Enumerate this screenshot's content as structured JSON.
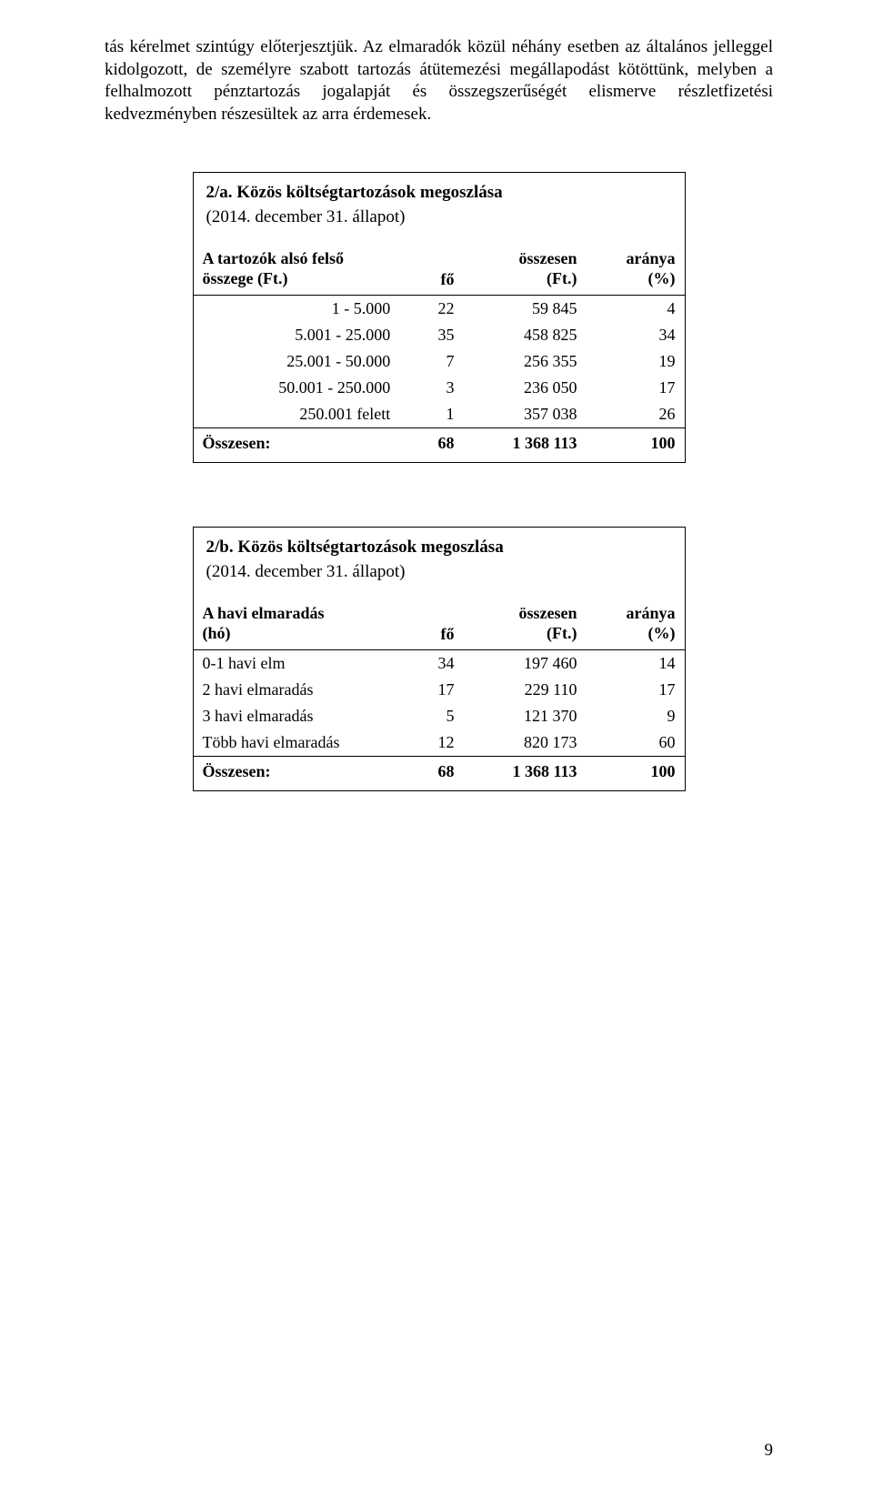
{
  "paragraph": "tás kérelmet szintúgy előterjesztjük. Az elmaradók közül néhány esetben az általános jelleggel kidolgozott, de személyre szabott tartozás átütemezési megállapodást kötöttünk, melyben a felhalmozott pénztartozás jogalapját és összegszerűségét elismerve részletfizetési kedvezményben részesültek az arra érdemesek.",
  "table1": {
    "title": "2/a. Közös költségtartozások megoszlása",
    "subtitle": "(2014. december 31. állapot)",
    "headers": {
      "c1_line1": "A tartozók alsó felső",
      "c1_line2": "összege (Ft.)",
      "c2": "fő",
      "c3_line1": "összesen",
      "c3_line2": "(Ft.)",
      "c4_line1": "aránya",
      "c4_line2": "(%)"
    },
    "rows": [
      {
        "c1": "1 - 5.000",
        "c2": "22",
        "c3": "59 845",
        "c4": "4"
      },
      {
        "c1": "5.001 - 25.000",
        "c2": "35",
        "c3": "458 825",
        "c4": "34"
      },
      {
        "c1": "25.001 - 50.000",
        "c2": "7",
        "c3": "256 355",
        "c4": "19"
      },
      {
        "c1": "50.001 - 250.000",
        "c2": "3",
        "c3": "236 050",
        "c4": "17"
      },
      {
        "c1": "250.001 felett",
        "c2": "1",
        "c3": "357 038",
        "c4": "26"
      }
    ],
    "total": {
      "c1": "Összesen:",
      "c2": "68",
      "c3": "1 368 113",
      "c4": "100"
    }
  },
  "table2": {
    "title": "2/b. Közös költségtartozások megoszlása",
    "subtitle": "(2014. december 31. állapot)",
    "headers": {
      "c1_line1": "A havi  elmaradás",
      "c1_line2": "(hó)",
      "c2": "fő",
      "c3_line1": "összesen",
      "c3_line2": "(Ft.)",
      "c4_line1": "aránya",
      "c4_line2": "(%)"
    },
    "rows": [
      {
        "c1": "0-1 havi elm",
        "c2": "34",
        "c3": "197 460",
        "c4": "14"
      },
      {
        "c1": "2 havi elmaradás",
        "c2": "17",
        "c3": "229 110",
        "c4": "17"
      },
      {
        "c1": "3 havi elmaradás",
        "c2": "5",
        "c3": "121 370",
        "c4": "9"
      },
      {
        "c1": "Több havi elmaradás",
        "c2": "12",
        "c3": "820 173",
        "c4": "60"
      }
    ],
    "total": {
      "c1": "Összesen:",
      "c2": "68",
      "c3": "1 368 113",
      "c4": "100"
    }
  },
  "page_number": "9"
}
